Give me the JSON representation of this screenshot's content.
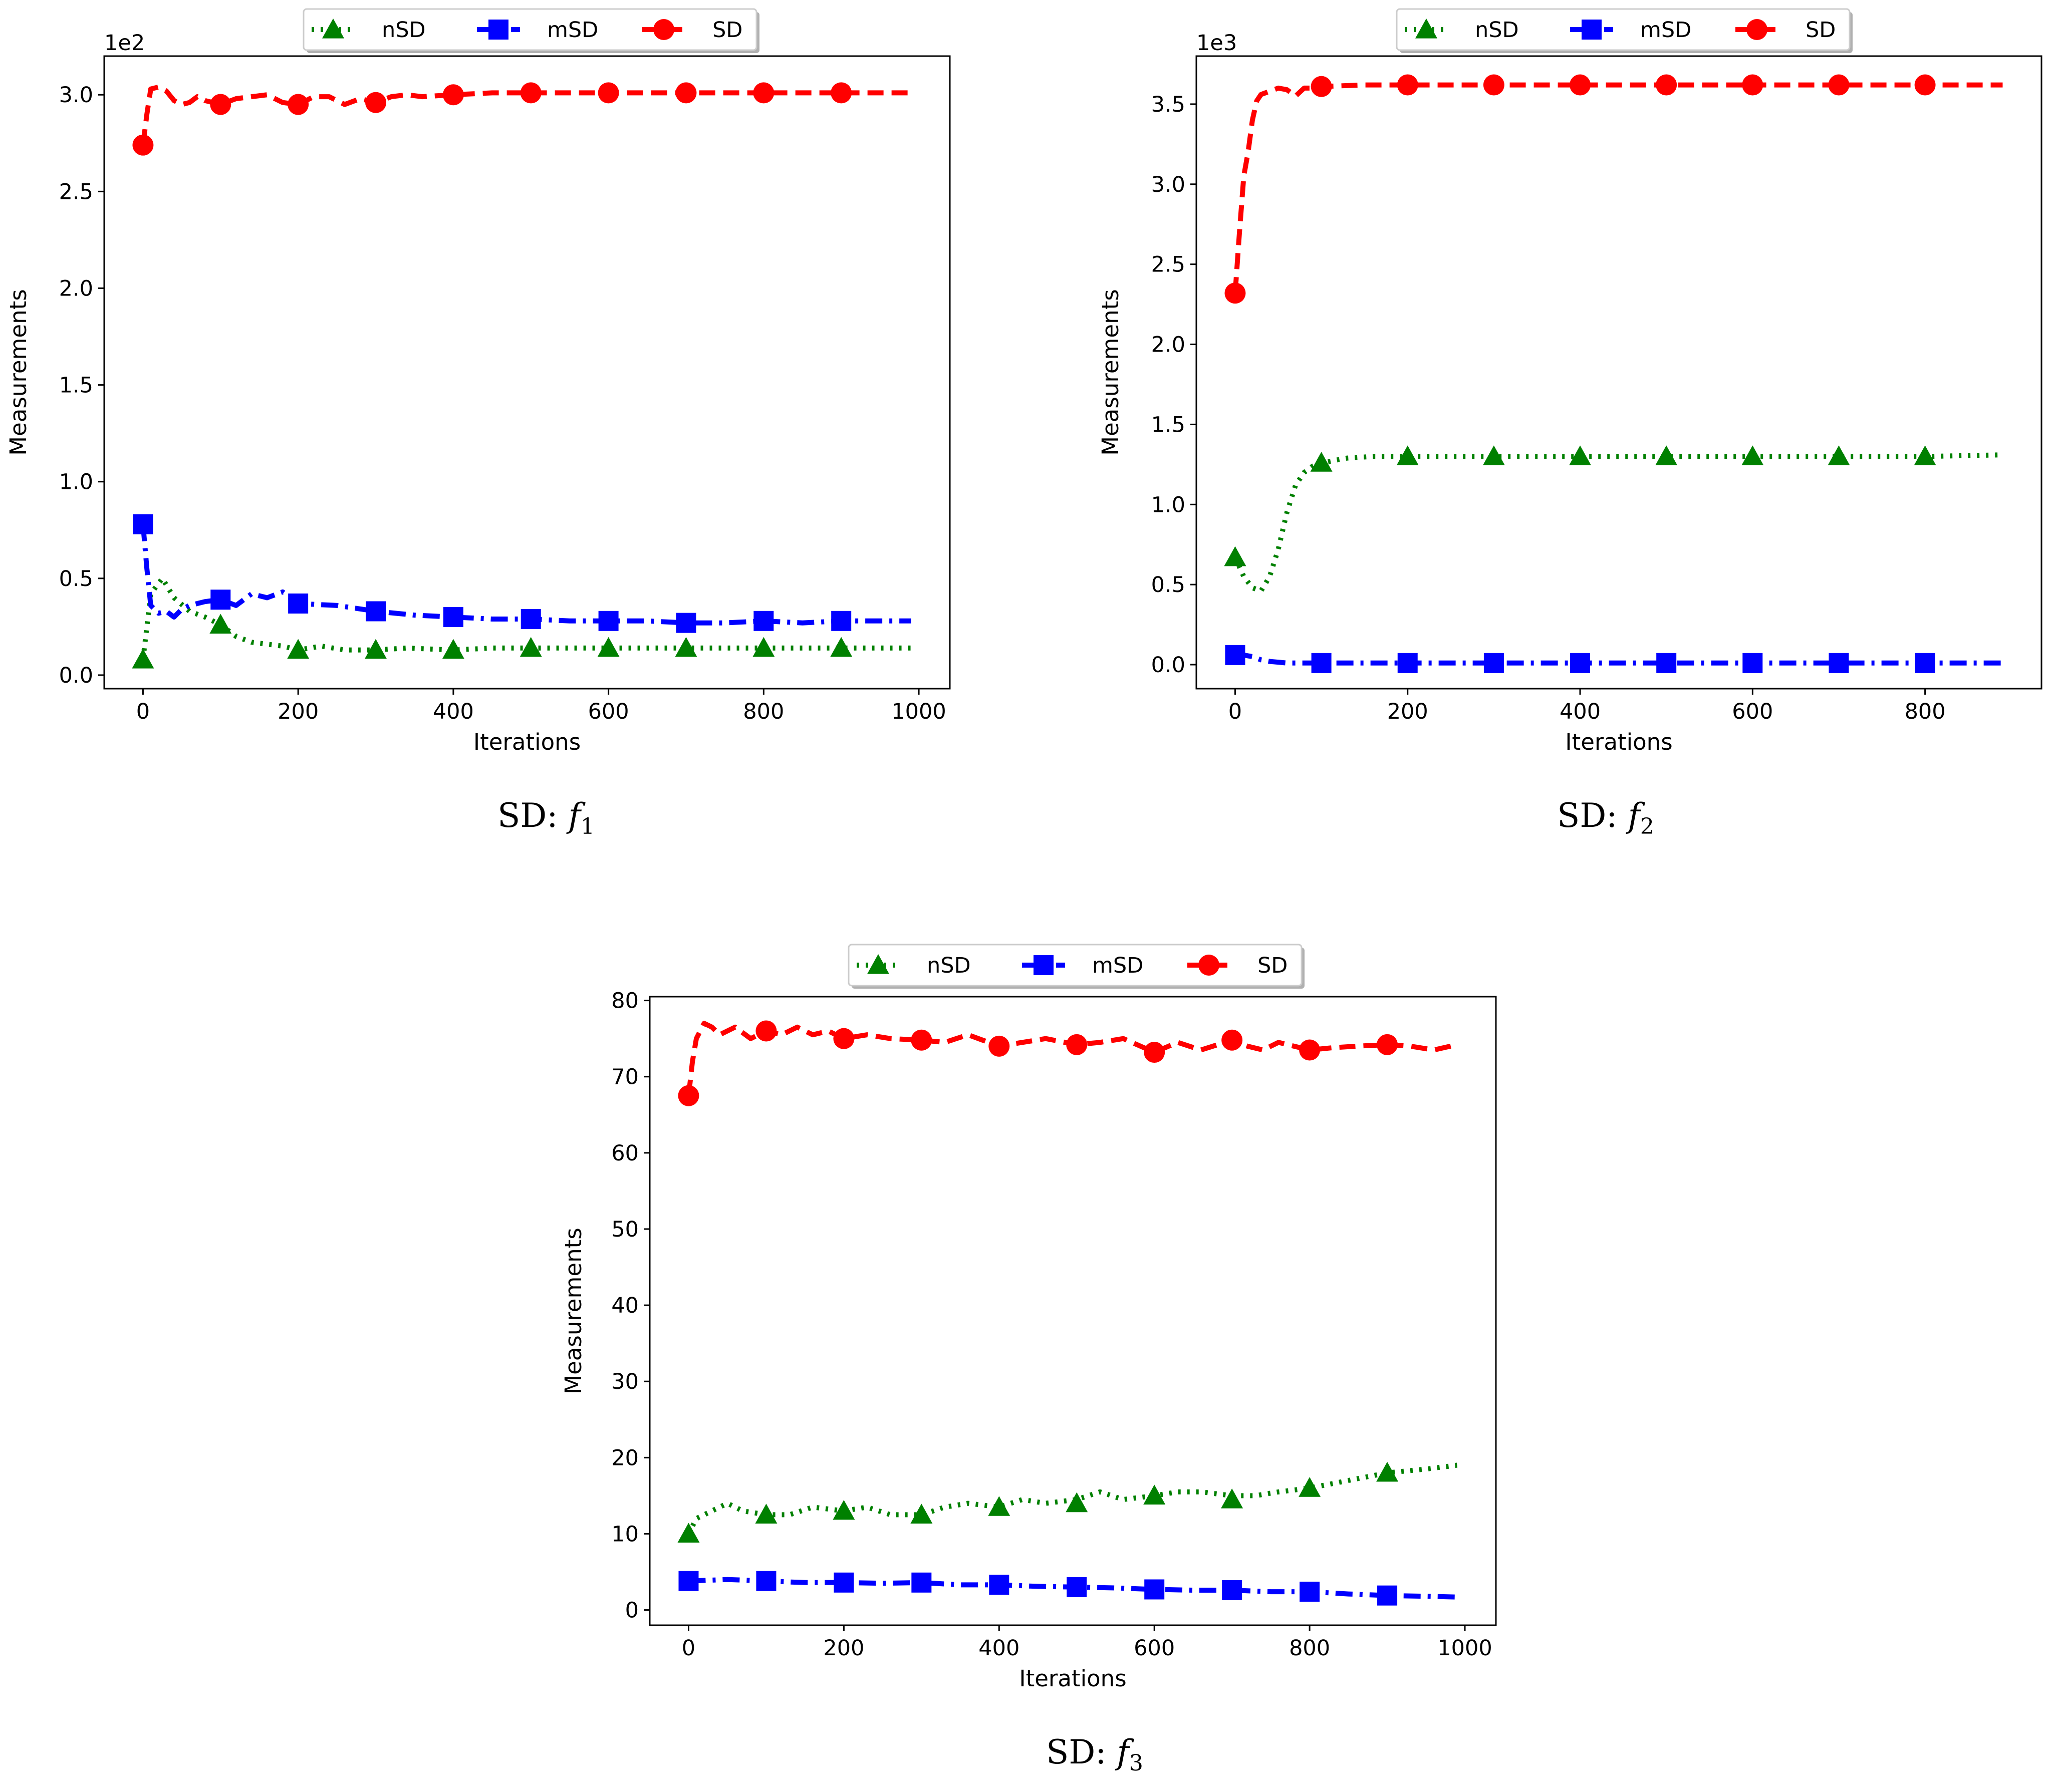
{
  "chart_data": [
    {
      "type": "line",
      "caption": {
        "prefix": "SD: ",
        "func": "f",
        "sub": "1"
      },
      "xlabel": "Iterations",
      "ylabel": "Measurements",
      "offset_text": "1e2",
      "xlim": [
        -50,
        1040
      ],
      "ylim": [
        -0.07,
        3.2
      ],
      "xticks": [
        0,
        200,
        400,
        600,
        800,
        1000
      ],
      "yticks": [
        0.0,
        0.5,
        1.0,
        1.5,
        2.0,
        2.5,
        3.0
      ],
      "ytick_labels": [
        "0.0",
        "0.5",
        "1.0",
        "1.5",
        "2.0",
        "2.5",
        "3.0"
      ],
      "legend": [
        "nSD",
        "mSD",
        "SD"
      ],
      "series": [
        {
          "name": "nSD",
          "color": "#008000",
          "style": "dotted",
          "marker": "triangle",
          "x": [
            0,
            10,
            25,
            40,
            60,
            80,
            100,
            120,
            140,
            160,
            180,
            200,
            230,
            260,
            300,
            340,
            400,
            450,
            500,
            550,
            600,
            650,
            700,
            750,
            800,
            850,
            900,
            950,
            990
          ],
          "y": [
            0.08,
            0.42,
            0.5,
            0.4,
            0.33,
            0.3,
            0.26,
            0.2,
            0.17,
            0.16,
            0.15,
            0.13,
            0.15,
            0.13,
            0.13,
            0.14,
            0.13,
            0.14,
            0.14,
            0.14,
            0.14,
            0.14,
            0.14,
            0.14,
            0.14,
            0.14,
            0.14,
            0.14,
            0.14
          ],
          "markers_x": [
            0,
            100,
            200,
            300,
            400,
            500,
            600,
            700,
            800,
            900
          ],
          "markers_y": [
            0.08,
            0.26,
            0.13,
            0.13,
            0.13,
            0.14,
            0.14,
            0.14,
            0.14,
            0.14
          ]
        },
        {
          "name": "mSD",
          "color": "#0000ff",
          "style": "dashdot",
          "marker": "square",
          "x": [
            0,
            5,
            10,
            20,
            30,
            40,
            50,
            60,
            80,
            100,
            120,
            140,
            160,
            180,
            200,
            250,
            300,
            350,
            400,
            450,
            500,
            550,
            600,
            650,
            700,
            750,
            800,
            850,
            900,
            950,
            990
          ],
          "y": [
            0.78,
            0.55,
            0.36,
            0.32,
            0.33,
            0.3,
            0.34,
            0.36,
            0.38,
            0.39,
            0.36,
            0.42,
            0.4,
            0.43,
            0.37,
            0.36,
            0.33,
            0.31,
            0.3,
            0.29,
            0.29,
            0.28,
            0.28,
            0.28,
            0.27,
            0.27,
            0.28,
            0.27,
            0.28,
            0.28,
            0.28
          ],
          "markers_x": [
            0,
            100,
            200,
            300,
            400,
            500,
            600,
            700,
            800,
            900
          ],
          "markers_y": [
            0.78,
            0.39,
            0.37,
            0.33,
            0.3,
            0.29,
            0.28,
            0.27,
            0.28,
            0.28
          ]
        },
        {
          "name": "SD",
          "color": "#ff0000",
          "style": "dashed",
          "marker": "circle",
          "x": [
            0,
            5,
            10,
            20,
            30,
            40,
            50,
            60,
            70,
            80,
            100,
            120,
            140,
            160,
            180,
            200,
            220,
            240,
            260,
            280,
            300,
            320,
            340,
            360,
            400,
            450,
            500,
            550,
            600,
            650,
            700,
            750,
            800,
            850,
            900,
            950,
            990
          ],
          "y": [
            2.74,
            2.9,
            3.03,
            3.04,
            3.02,
            2.97,
            2.95,
            2.96,
            2.99,
            2.97,
            2.95,
            2.98,
            2.99,
            3.0,
            2.96,
            2.95,
            2.99,
            2.99,
            2.95,
            2.98,
            2.96,
            2.99,
            3.0,
            2.99,
            3.0,
            3.01,
            3.01,
            3.01,
            3.01,
            3.01,
            3.01,
            3.01,
            3.01,
            3.01,
            3.01,
            3.01,
            3.01
          ],
          "markers_x": [
            0,
            100,
            200,
            300,
            400,
            500,
            600,
            700,
            800,
            900
          ],
          "markers_y": [
            2.74,
            2.95,
            2.95,
            2.96,
            3.0,
            3.01,
            3.01,
            3.01,
            3.01,
            3.01
          ]
        }
      ]
    },
    {
      "type": "line",
      "caption": {
        "prefix": "SD: ",
        "func": "f",
        "sub": "2"
      },
      "xlabel": "Iterations",
      "ylabel": "Measurements",
      "offset_text": "1e3",
      "xlim": [
        -45,
        935
      ],
      "ylim": [
        -0.15,
        3.8
      ],
      "xticks": [
        0,
        200,
        400,
        600,
        800
      ],
      "yticks": [
        0.0,
        0.5,
        1.0,
        1.5,
        2.0,
        2.5,
        3.0,
        3.5
      ],
      "ytick_labels": [
        "0.0",
        "0.5",
        "1.0",
        "1.5",
        "2.0",
        "2.5",
        "3.0",
        "3.5"
      ],
      "legend": [
        "nSD",
        "mSD",
        "SD"
      ],
      "series": [
        {
          "name": "nSD",
          "color": "#008000",
          "style": "dotted",
          "marker": "triangle",
          "x": [
            0,
            10,
            20,
            30,
            40,
            50,
            60,
            70,
            80,
            90,
            100,
            130,
            160,
            200,
            300,
            400,
            500,
            600,
            700,
            800,
            890
          ],
          "y": [
            0.67,
            0.55,
            0.48,
            0.46,
            0.55,
            0.72,
            0.95,
            1.12,
            1.2,
            1.24,
            1.26,
            1.29,
            1.3,
            1.3,
            1.3,
            1.3,
            1.3,
            1.3,
            1.3,
            1.3,
            1.31
          ],
          "markers_x": [
            0,
            100,
            200,
            300,
            400,
            500,
            600,
            700,
            800
          ],
          "markers_y": [
            0.67,
            1.26,
            1.3,
            1.3,
            1.3,
            1.3,
            1.3,
            1.3,
            1.3
          ]
        },
        {
          "name": "mSD",
          "color": "#0000ff",
          "style": "dashdot",
          "marker": "square",
          "x": [
            0,
            10,
            20,
            30,
            40,
            60,
            100,
            200,
            300,
            400,
            500,
            600,
            700,
            800,
            890
          ],
          "y": [
            0.06,
            0.06,
            0.05,
            0.03,
            0.02,
            0.01,
            0.01,
            0.01,
            0.01,
            0.01,
            0.01,
            0.01,
            0.01,
            0.01,
            0.01
          ],
          "markers_x": [
            0,
            100,
            200,
            300,
            400,
            500,
            600,
            700,
            800
          ],
          "markers_y": [
            0.06,
            0.01,
            0.01,
            0.01,
            0.01,
            0.01,
            0.01,
            0.01,
            0.01
          ]
        },
        {
          "name": "SD",
          "color": "#ff0000",
          "style": "dashed",
          "marker": "circle",
          "x": [
            0,
            5,
            10,
            15,
            20,
            25,
            30,
            40,
            50,
            60,
            70,
            80,
            90,
            100,
            150,
            200,
            300,
            400,
            500,
            600,
            700,
            800,
            890
          ],
          "y": [
            2.32,
            2.7,
            3.05,
            3.2,
            3.4,
            3.52,
            3.56,
            3.58,
            3.6,
            3.59,
            3.55,
            3.6,
            3.6,
            3.61,
            3.62,
            3.62,
            3.62,
            3.62,
            3.62,
            3.62,
            3.62,
            3.62,
            3.62
          ],
          "markers_x": [
            0,
            100,
            200,
            300,
            400,
            500,
            600,
            700,
            800
          ],
          "markers_y": [
            2.32,
            3.61,
            3.62,
            3.62,
            3.62,
            3.62,
            3.62,
            3.62,
            3.62
          ]
        }
      ]
    },
    {
      "type": "line",
      "caption": {
        "prefix": "SD: ",
        "func": "f",
        "sub": "3"
      },
      "xlabel": "Iterations",
      "ylabel": "Measurements",
      "offset_text": "",
      "xlim": [
        -50,
        1040
      ],
      "ylim": [
        -2,
        80.5
      ],
      "xticks": [
        0,
        200,
        400,
        600,
        800,
        1000
      ],
      "yticks": [
        0,
        10,
        20,
        30,
        40,
        50,
        60,
        70,
        80
      ],
      "ytick_labels": [
        "0",
        "10",
        "20",
        "30",
        "40",
        "50",
        "60",
        "70",
        "80"
      ],
      "legend": [
        "nSD",
        "mSD",
        "SD"
      ],
      "series": [
        {
          "name": "nSD",
          "color": "#008000",
          "style": "dotted",
          "marker": "triangle",
          "x": [
            0,
            10,
            30,
            50,
            70,
            100,
            130,
            160,
            200,
            230,
            260,
            300,
            330,
            360,
            400,
            430,
            460,
            500,
            530,
            560,
            600,
            630,
            660,
            700,
            730,
            760,
            800,
            850,
            900,
            950,
            990
          ],
          "y": [
            10.0,
            12.0,
            13.0,
            14.0,
            13.0,
            12.5,
            12.5,
            13.5,
            13.0,
            13.5,
            12.5,
            12.5,
            13.5,
            14.0,
            13.5,
            14.5,
            14.0,
            14.5,
            15.5,
            14.5,
            15.0,
            15.5,
            15.5,
            15.0,
            15.0,
            15.5,
            16.0,
            17.0,
            18.0,
            18.5,
            19.0
          ],
          "markers_x": [
            0,
            100,
            200,
            300,
            400,
            500,
            600,
            700,
            800,
            900
          ],
          "markers_y": [
            10.0,
            12.5,
            13.0,
            12.5,
            13.5,
            14.0,
            15.0,
            14.5,
            16.0,
            18.0
          ]
        },
        {
          "name": "mSD",
          "color": "#0000ff",
          "style": "dashdot",
          "marker": "square",
          "x": [
            0,
            50,
            100,
            150,
            200,
            250,
            300,
            350,
            400,
            450,
            500,
            550,
            600,
            650,
            700,
            750,
            800,
            850,
            900,
            950,
            990
          ],
          "y": [
            3.8,
            4.0,
            3.8,
            3.6,
            3.6,
            3.5,
            3.6,
            3.3,
            3.3,
            3.1,
            3.0,
            2.9,
            2.7,
            2.6,
            2.6,
            2.4,
            2.4,
            2.1,
            1.9,
            1.8,
            1.7
          ],
          "markers_x": [
            0,
            100,
            200,
            300,
            400,
            500,
            600,
            700,
            800,
            900
          ],
          "markers_y": [
            3.8,
            3.8,
            3.6,
            3.6,
            3.3,
            3.0,
            2.7,
            2.6,
            2.4,
            1.9
          ]
        },
        {
          "name": "SD",
          "color": "#ff0000",
          "style": "dashed",
          "marker": "circle",
          "x": [
            0,
            5,
            10,
            20,
            30,
            40,
            60,
            80,
            100,
            120,
            140,
            160,
            180,
            200,
            230,
            260,
            300,
            330,
            360,
            400,
            430,
            460,
            500,
            530,
            560,
            600,
            630,
            660,
            700,
            720,
            740,
            760,
            800,
            830,
            860,
            900,
            930,
            960,
            990
          ],
          "y": [
            67.5,
            72.0,
            75.0,
            77.0,
            76.5,
            75.5,
            76.5,
            75.0,
            76.0,
            75.5,
            76.5,
            75.5,
            76.0,
            75.0,
            75.5,
            75.0,
            74.8,
            74.5,
            75.5,
            74.0,
            74.5,
            75.0,
            74.2,
            74.5,
            75.0,
            73.2,
            74.5,
            73.5,
            74.8,
            74.0,
            73.5,
            74.5,
            73.5,
            73.8,
            74.0,
            74.2,
            74.0,
            73.5,
            74.2
          ],
          "markers_x": [
            0,
            100,
            200,
            300,
            400,
            500,
            600,
            700,
            800,
            900
          ],
          "markers_y": [
            67.5,
            76.0,
            75.0,
            74.8,
            74.0,
            74.2,
            73.2,
            74.8,
            73.5,
            74.2
          ]
        }
      ]
    }
  ]
}
